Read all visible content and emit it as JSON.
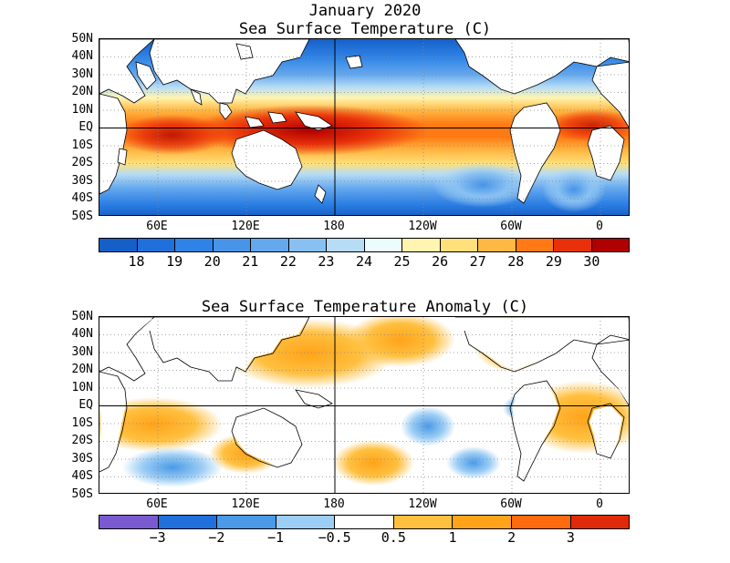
{
  "header": {
    "month_title": "January 2020",
    "sst_title": "Sea Surface Temperature (C)",
    "anom_title": "Sea Surface Temperature Anomaly (C)"
  },
  "lat_labels": [
    "50N",
    "40N",
    "30N",
    "20N",
    "10N",
    "EQ",
    "10S",
    "20S",
    "30S",
    "40S",
    "50S"
  ],
  "lon_labels": [
    "60E",
    "120E",
    "180",
    "120W",
    "60W",
    "0"
  ],
  "sst_colorbar": {
    "labels": [
      "18",
      "19",
      "20",
      "21",
      "22",
      "23",
      "24",
      "25",
      "26",
      "27",
      "28",
      "29",
      "30"
    ],
    "colors": [
      "#1560c8",
      "#1f6fdc",
      "#2f82e6",
      "#4794e8",
      "#64a8ee",
      "#88c0f2",
      "#b6dcf6",
      "#eafcfc",
      "#fff5b0",
      "#ffe07a",
      "#ffb844",
      "#ff7a14",
      "#e8300a",
      "#b00000"
    ]
  },
  "anom_colorbar": {
    "labels": [
      "−3",
      "−2",
      "−1",
      "−0.5",
      "0.5",
      "1",
      "2",
      "3"
    ],
    "colors": [
      "#7a5ad0",
      "#1f6fdc",
      "#4a9ae8",
      "#9ccdf4",
      "#ffffff",
      "#ffc040",
      "#ffa31a",
      "#ff6a10",
      "#e02a0a"
    ]
  },
  "map_colors": {
    "land": "#ffffff",
    "coast": "#000000",
    "grid": "#888888"
  }
}
